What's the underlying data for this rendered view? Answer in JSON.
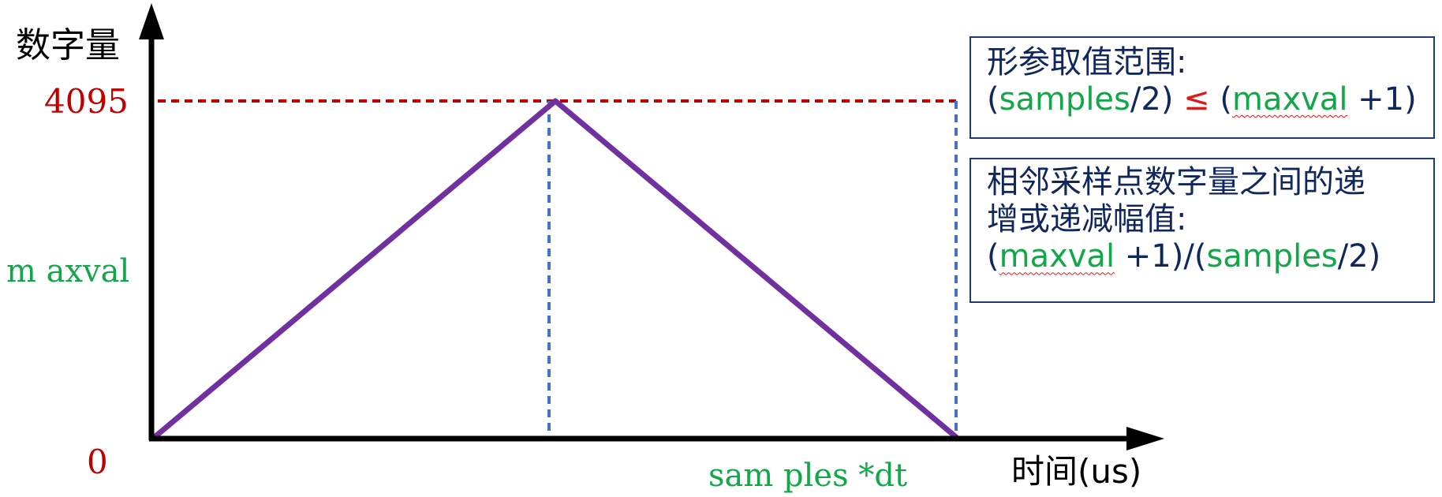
{
  "axes": {
    "y_title": "数字量",
    "x_title": "时间(us)",
    "y_tick_top": "4095",
    "y_tick_maxval": "m axval",
    "y_tick_zero": "0",
    "x_tick_end": "sam ples *dt"
  },
  "box_range": {
    "title": "形参取值范围:",
    "open1": "(",
    "samples": "samples",
    "div2": "/2) ",
    "le": "≤",
    "open2": " (",
    "maxval": "maxval",
    "plus1": " +1)"
  },
  "box_step": {
    "line1": "相邻采样点数字量之间的递",
    "line2": "增或递减幅值:",
    "open1": "(",
    "maxval": "maxval",
    "plus1": " +1)/(",
    "samples": "samples",
    "div2": "/2)"
  },
  "colors": {
    "axis": "#000000",
    "wave": "#7030a0",
    "dash_red": "#c00000",
    "dash_blue": "#4472c4",
    "label_red": "#c00000",
    "label_green": "#12a84a",
    "box_border": "#1f3a78"
  },
  "chart_data": {
    "type": "line",
    "series": [
      {
        "x": [
          0,
          0.5,
          1
        ],
        "y": [
          0,
          4095,
          0
        ]
      }
    ],
    "ylim": [
      0,
      4095
    ]
  }
}
